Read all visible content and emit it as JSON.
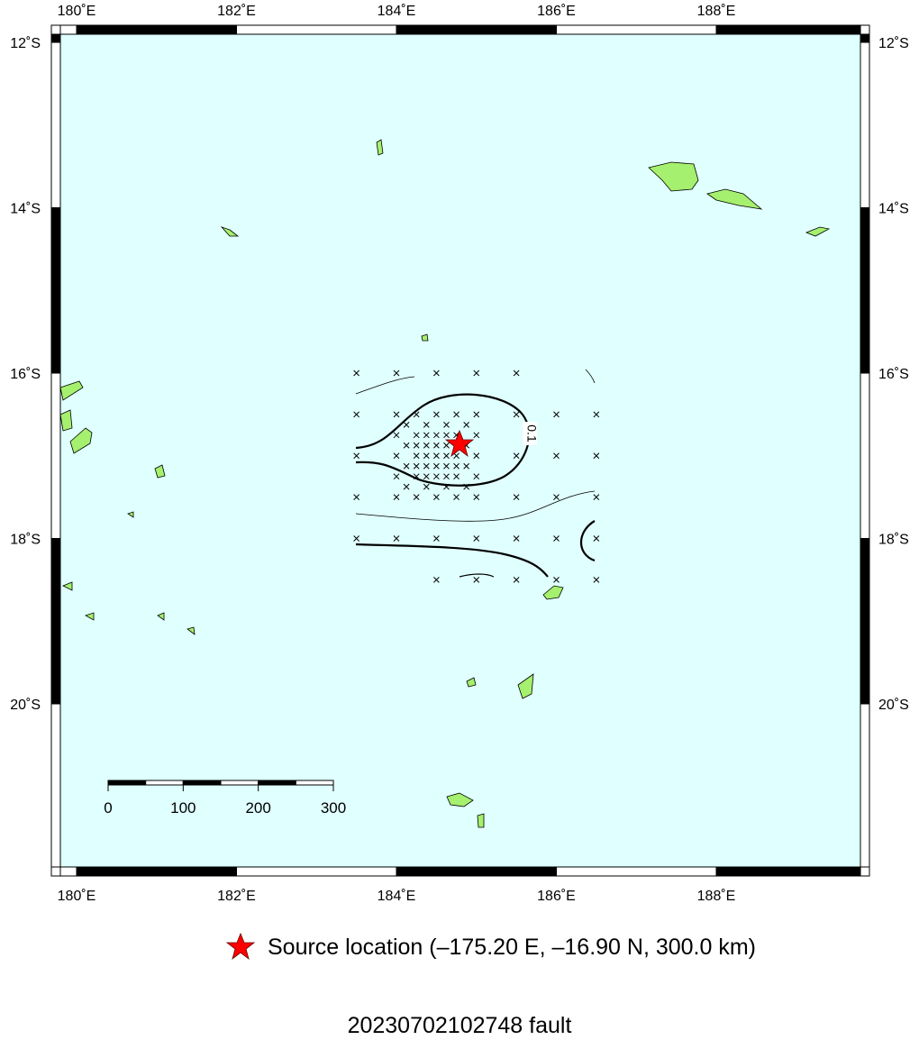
{
  "map": {
    "lon_ticks": [
      {
        "value": 180,
        "label": "180˚E"
      },
      {
        "value": 182,
        "label": "182˚E"
      },
      {
        "value": 184,
        "label": "184˚E"
      },
      {
        "value": 186,
        "label": "186˚E"
      },
      {
        "value": 188,
        "label": "188˚E"
      }
    ],
    "lat_ticks": [
      {
        "value": -12,
        "label": "12˚S"
      },
      {
        "value": -14,
        "label": "14˚S"
      },
      {
        "value": -16,
        "label": "16˚S"
      },
      {
        "value": -18,
        "label": "18˚S"
      },
      {
        "value": -20,
        "label": "20˚S"
      }
    ],
    "scale_bar_ticks": [
      0,
      100,
      200,
      300
    ],
    "contour_label": "0.1",
    "legend_label": "Source location (–175.20 E, –16.90 N, 300.0 km)",
    "title": "20230702102748 fault"
  }
}
